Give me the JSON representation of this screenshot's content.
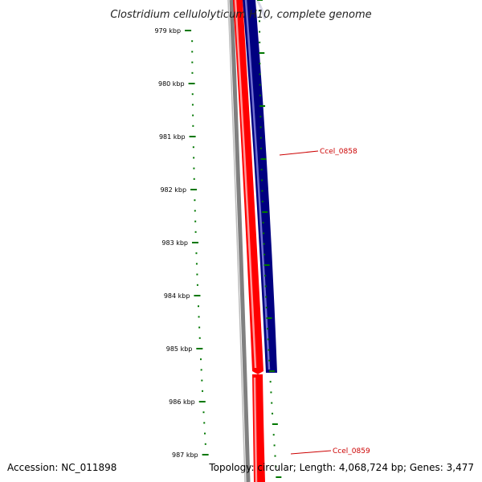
{
  "title": "Clostridium cellulolyticum H10, complete genome",
  "footer": {
    "accession": "Accession: NC_011898",
    "summary": "Topology: circular; Length: 4,068,724 bp; Genes: 3,477"
  },
  "ruler": {
    "unit": "kbp",
    "ticks": [
      "979 kbp",
      "980 kbp",
      "981 kbp",
      "982 kbp",
      "983 kbp",
      "984 kbp",
      "985 kbp",
      "986 kbp",
      "987 kbp"
    ]
  },
  "genes": [
    {
      "label": "Ccel_0858",
      "strand": "reverse",
      "color": "#000080"
    },
    {
      "label": "Ccel_0859",
      "strand": "forward",
      "color": "#ff0000"
    }
  ],
  "colors": {
    "forward_strand": "#ff0000",
    "reverse_strand": "#000080",
    "backbone": "#808080",
    "ticks": "#007700",
    "gene_label": "#cc0000"
  }
}
